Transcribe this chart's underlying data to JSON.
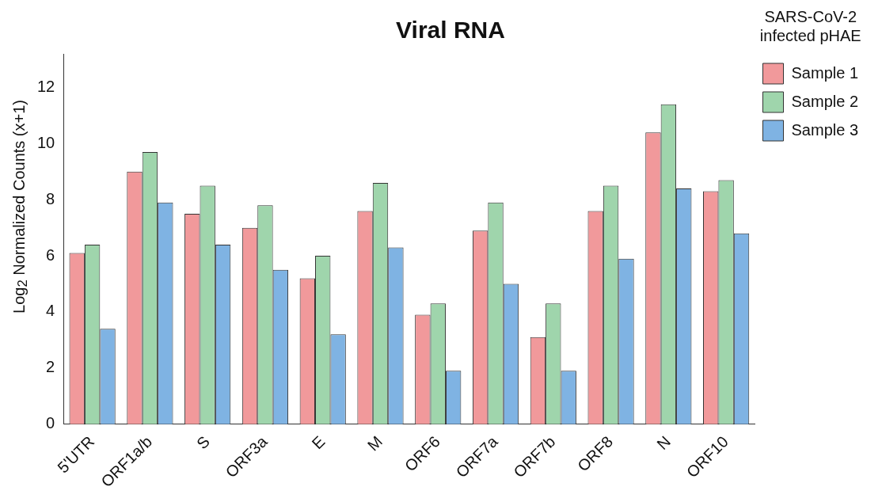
{
  "chart_data": {
    "type": "bar",
    "title": "Viral RNA",
    "ylabel": "Log$_{2}$ Normalized Counts  (x+1)",
    "legend_title": "SARS-CoV-2\ninfected pHAE",
    "categories": [
      "5'UTR",
      "ORF1a/b",
      "S",
      "ORF3a",
      "E",
      "M",
      "ORF6",
      "ORF7a",
      "ORF7b",
      "ORF8",
      "N",
      "ORF10"
    ],
    "series": [
      {
        "name": "Sample 1",
        "color": "#f1999b",
        "values": [
          6.1,
          9.0,
          7.5,
          7.0,
          5.2,
          7.6,
          3.9,
          6.9,
          3.1,
          7.6,
          10.4,
          8.3
        ]
      },
      {
        "name": "Sample 2",
        "color": "#9fd5ac",
        "values": [
          6.4,
          9.7,
          8.5,
          7.8,
          6.0,
          8.6,
          4.3,
          7.9,
          4.3,
          8.5,
          11.4,
          8.7
        ]
      },
      {
        "name": "Sample 3",
        "color": "#7fb3e3",
        "values": [
          3.4,
          7.9,
          6.4,
          5.5,
          3.2,
          6.3,
          1.9,
          5.0,
          1.9,
          5.9,
          8.4,
          6.8
        ]
      }
    ],
    "ylim": [
      0,
      13.2
    ],
    "yticks": [
      0,
      2,
      4,
      6,
      8,
      10,
      12
    ],
    "grid": false,
    "legend": "top right"
  }
}
